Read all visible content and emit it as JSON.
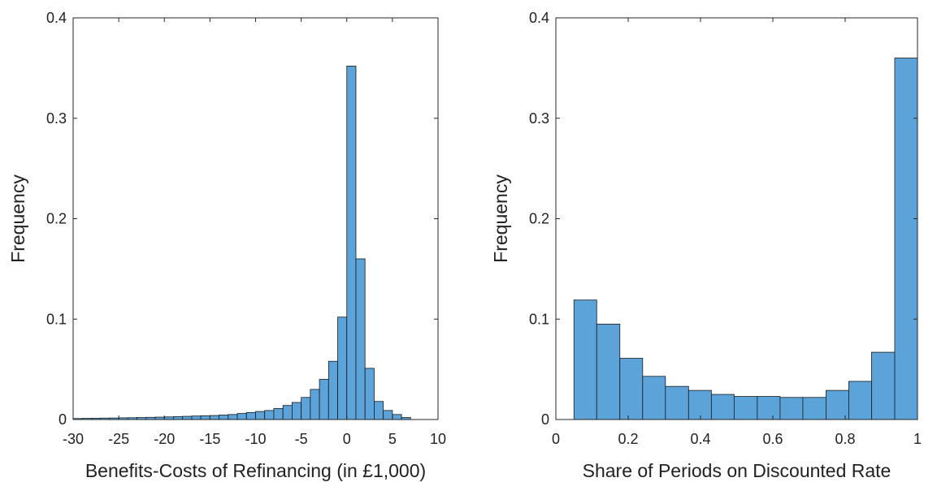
{
  "chart_data": [
    {
      "type": "histogram",
      "xlabel": "Benefits-Costs of Refinancing (in £1,000)",
      "ylabel": "Frequency",
      "color": "#5ba3d9",
      "bins": [
        -30,
        -29,
        -28,
        -27,
        -26,
        -25,
        -24,
        -23,
        -22,
        -21,
        -20,
        -19,
        -18,
        -17,
        -16,
        -15,
        -14,
        -13,
        -12,
        -11,
        -10,
        -9,
        -8,
        -7,
        -6,
        -5,
        -4,
        -3,
        -2,
        -1,
        0,
        1,
        2,
        3,
        4,
        5,
        6,
        7
      ],
      "counts": [
        0.001,
        0.0012,
        0.0013,
        0.0014,
        0.0015,
        0.0017,
        0.0018,
        0.002,
        0.0022,
        0.0024,
        0.0026,
        0.0029,
        0.0032,
        0.0035,
        0.0038,
        0.004,
        0.0045,
        0.005,
        0.006,
        0.007,
        0.008,
        0.009,
        0.011,
        0.014,
        0.017,
        0.022,
        0.03,
        0.04,
        0.058,
        0.102,
        0.352,
        0.16,
        0.051,
        0.018,
        0.009,
        0.005,
        0.002
      ],
      "xlim": [
        -30,
        10
      ],
      "xticks": [
        -30,
        -25,
        -20,
        -15,
        -10,
        -5,
        0,
        5,
        10
      ],
      "ylim": [
        0,
        0.4
      ],
      "yticks": [
        0,
        0.1,
        0.2,
        0.3,
        0.4
      ]
    },
    {
      "type": "histogram",
      "xlabel": "Share of Periods on Discounted Rate",
      "ylabel": "Frequency",
      "color": "#5ba3d9",
      "bins": [
        0.05,
        0.113,
        0.177,
        0.24,
        0.303,
        0.367,
        0.43,
        0.493,
        0.557,
        0.62,
        0.683,
        0.747,
        0.81,
        0.873,
        0.937,
        1.0
      ],
      "counts": [
        0.119,
        0.095,
        0.061,
        0.043,
        0.033,
        0.029,
        0.025,
        0.023,
        0.023,
        0.022,
        0.022,
        0.029,
        0.038,
        0.067,
        0.36
      ],
      "xlim": [
        0,
        1
      ],
      "xticks": [
        0,
        0.2,
        0.4,
        0.6,
        0.8,
        1
      ],
      "ylim": [
        0,
        0.4
      ],
      "yticks": [
        0,
        0.1,
        0.2,
        0.3,
        0.4
      ]
    }
  ]
}
